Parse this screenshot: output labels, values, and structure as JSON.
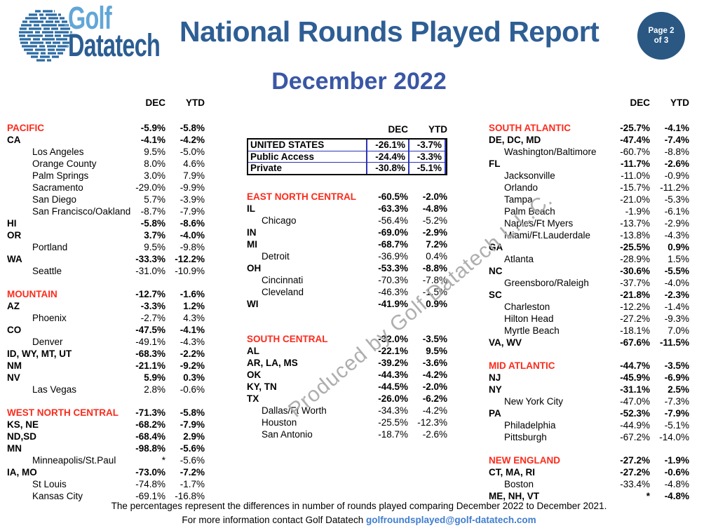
{
  "logo": {
    "line1": "Golf",
    "line2": "Datatech"
  },
  "header": {
    "title": "National Rounds Played Report",
    "page_badge": "Page 2 of 3"
  },
  "subtitle": "December 2022",
  "watermark": "Produced by Golf Datatech L.L.C.",
  "us_box": {
    "rows": [
      {
        "label": "UNITED STATES",
        "dec": "-26.1%",
        "ytd": "-3.7%"
      },
      {
        "label": "Public Access",
        "dec": "-24.4%",
        "ytd": "-3.3%"
      },
      {
        "label": "Private",
        "dec": "-30.8%",
        "ytd": "-5.1%"
      }
    ]
  },
  "columns": [
    {
      "id": "left",
      "headers": [
        "DEC",
        "YTD"
      ],
      "sections": [
        {
          "rows": [
            {
              "label": "PACIFIC",
              "dec": "-5.9%",
              "ytd": "-5.8%",
              "style": "section"
            },
            {
              "label": "CA",
              "dec": "-4.1%",
              "ytd": "-4.2%",
              "style": "state"
            },
            {
              "label": "Los Angeles",
              "dec": "9.5%",
              "ytd": "-5.0%",
              "style": "city"
            },
            {
              "label": "Orange County",
              "dec": "8.0%",
              "ytd": "4.6%",
              "style": "city"
            },
            {
              "label": "Palm Springs",
              "dec": "3.0%",
              "ytd": "7.9%",
              "style": "city"
            },
            {
              "label": "Sacramento",
              "dec": "-29.0%",
              "ytd": "-9.9%",
              "style": "city"
            },
            {
              "label": "San Diego",
              "dec": "5.7%",
              "ytd": "-3.9%",
              "style": "city"
            },
            {
              "label": "San Francisco/Oakland",
              "dec": "-8.7%",
              "ytd": "-7.9%",
              "style": "city"
            },
            {
              "label": "HI",
              "dec": "-5.8%",
              "ytd": "-8.6%",
              "style": "state"
            },
            {
              "label": "OR",
              "dec": "3.7%",
              "ytd": "-4.0%",
              "style": "state"
            },
            {
              "label": "Portland",
              "dec": "9.5%",
              "ytd": "-9.8%",
              "style": "city"
            },
            {
              "label": "WA",
              "dec": "-33.3%",
              "ytd": "-12.2%",
              "style": "state"
            },
            {
              "label": "Seattle",
              "dec": "-31.0%",
              "ytd": "-10.9%",
              "style": "city"
            }
          ]
        },
        {
          "rows": [
            {
              "label": "MOUNTAIN",
              "dec": "-12.7%",
              "ytd": "-1.6%",
              "style": "section"
            },
            {
              "label": "AZ",
              "dec": "-3.3%",
              "ytd": "1.2%",
              "style": "state"
            },
            {
              "label": "Phoenix",
              "dec": "-2.7%",
              "ytd": "4.3%",
              "style": "city"
            },
            {
              "label": "CO",
              "dec": "-47.5%",
              "ytd": "-4.1%",
              "style": "state"
            },
            {
              "label": "Denver",
              "dec": "-49.1%",
              "ytd": "-4.3%",
              "style": "city"
            },
            {
              "label": "ID, WY, MT, UT",
              "dec": "-68.3%",
              "ytd": "-2.2%",
              "style": "state"
            },
            {
              "label": "NM",
              "dec": "-21.1%",
              "ytd": "-9.2%",
              "style": "state"
            },
            {
              "label": "NV",
              "dec": "5.9%",
              "ytd": "0.3%",
              "style": "state"
            },
            {
              "label": "Las Vegas",
              "dec": "2.8%",
              "ytd": "-0.6%",
              "style": "city"
            }
          ]
        },
        {
          "rows": [
            {
              "label": "WEST NORTH CENTRAL",
              "dec": "-71.3%",
              "ytd": "-5.8%",
              "style": "section"
            },
            {
              "label": "KS, NE",
              "dec": "-68.2%",
              "ytd": "-7.9%",
              "style": "state"
            },
            {
              "label": "ND,SD",
              "dec": "-68.4%",
              "ytd": "2.9%",
              "style": "state"
            },
            {
              "label": "MN",
              "dec": "-98.8%",
              "ytd": "-5.6%",
              "style": "state"
            },
            {
              "label": "Minneapolis/St.Paul",
              "dec": "*",
              "ytd": "-5.6%",
              "style": "city"
            },
            {
              "label": "IA, MO",
              "dec": "-73.0%",
              "ytd": "-7.2%",
              "style": "state"
            },
            {
              "label": "St Louis",
              "dec": "-74.8%",
              "ytd": "-1.7%",
              "style": "city"
            },
            {
              "label": "Kansas City",
              "dec": "-69.1%",
              "ytd": "-16.8%",
              "style": "city"
            }
          ]
        }
      ]
    },
    {
      "id": "middle",
      "headers": [
        "DEC",
        "YTD"
      ],
      "has_us_box": true,
      "sections": [
        {
          "rows": [
            {
              "label": "EAST NORTH CENTRAL",
              "dec": "-60.5%",
              "ytd": "-2.0%",
              "style": "section"
            },
            {
              "label": "IL",
              "dec": "-63.3%",
              "ytd": "-4.8%",
              "style": "state"
            },
            {
              "label": "Chicago",
              "dec": "-56.4%",
              "ytd": "-5.2%",
              "style": "city"
            },
            {
              "label": "IN",
              "dec": "-69.0%",
              "ytd": "-2.9%",
              "style": "state"
            },
            {
              "label": "MI",
              "dec": "-68.7%",
              "ytd": "7.2%",
              "style": "state"
            },
            {
              "label": "Detroit",
              "dec": "-36.9%",
              "ytd": "0.4%",
              "style": "city"
            },
            {
              "label": "OH",
              "dec": "-53.3%",
              "ytd": "-8.8%",
              "style": "state"
            },
            {
              "label": "Cincinnati",
              "dec": "-70.3%",
              "ytd": "-7.8%",
              "style": "city"
            },
            {
              "label": "Cleveland",
              "dec": "-46.3%",
              "ytd": "-1.5%",
              "style": "city"
            },
            {
              "label": "WI",
              "dec": "-41.9%",
              "ytd": "0.9%",
              "style": "state"
            }
          ]
        },
        {
          "rows": [
            {
              "label": "SOUTH CENTRAL",
              "dec": "-32.0%",
              "ytd": "-3.5%",
              "style": "section"
            },
            {
              "label": "AL",
              "dec": "-22.1%",
              "ytd": "9.5%",
              "style": "state"
            },
            {
              "label": "AR, LA, MS",
              "dec": "-39.2%",
              "ytd": "-3.6%",
              "style": "state"
            },
            {
              "label": "OK",
              "dec": "-44.3%",
              "ytd": "-4.2%",
              "style": "state"
            },
            {
              "label": "KY, TN",
              "dec": "-44.5%",
              "ytd": "-2.0%",
              "style": "state"
            },
            {
              "label": "TX",
              "dec": "-26.0%",
              "ytd": "-6.2%",
              "style": "state"
            },
            {
              "label": "Dallas/Ft Worth",
              "dec": "-34.3%",
              "ytd": "-4.2%",
              "style": "city"
            },
            {
              "label": "Houston",
              "dec": "-25.5%",
              "ytd": "-12.3%",
              "style": "city"
            },
            {
              "label": "San Antonio",
              "dec": "-18.7%",
              "ytd": "-2.6%",
              "style": "city"
            }
          ]
        }
      ]
    },
    {
      "id": "right",
      "headers": [
        "DEC",
        "YTD"
      ],
      "sections": [
        {
          "rows": [
            {
              "label": "SOUTH ATLANTIC",
              "dec": "-25.7%",
              "ytd": "-4.1%",
              "style": "section"
            },
            {
              "label": "DE, DC, MD",
              "dec": "-47.4%",
              "ytd": "-7.4%",
              "style": "state"
            },
            {
              "label": "Washington/Baltimore",
              "dec": "-60.7%",
              "ytd": "-8.8%",
              "style": "city"
            },
            {
              "label": "FL",
              "dec": "-11.7%",
              "ytd": "-2.6%",
              "style": "state"
            },
            {
              "label": "Jacksonville",
              "dec": "-11.0%",
              "ytd": "-0.9%",
              "style": "city"
            },
            {
              "label": "Orlando",
              "dec": "-15.7%",
              "ytd": "-11.2%",
              "style": "city"
            },
            {
              "label": "Tampa",
              "dec": "-21.0%",
              "ytd": "-5.3%",
              "style": "city"
            },
            {
              "label": "Palm Beach",
              "dec": "-1.9%",
              "ytd": "-6.1%",
              "style": "city"
            },
            {
              "label": "Naples/Ft Myers",
              "dec": "-13.7%",
              "ytd": "-2.9%",
              "style": "city"
            },
            {
              "label": "Miami/Ft.Lauderdale",
              "dec": "-13.8%",
              "ytd": "-4.3%",
              "style": "city"
            },
            {
              "label": "GA",
              "dec": "-25.5%",
              "ytd": "0.9%",
              "style": "state"
            },
            {
              "label": "Atlanta",
              "dec": "-28.9%",
              "ytd": "1.5%",
              "style": "city"
            },
            {
              "label": "NC",
              "dec": "-30.6%",
              "ytd": "-5.5%",
              "style": "state"
            },
            {
              "label": "Greensboro/Raleigh",
              "dec": "-37.7%",
              "ytd": "-4.0%",
              "style": "city"
            },
            {
              "label": "SC",
              "dec": "-21.8%",
              "ytd": "-2.3%",
              "style": "state"
            },
            {
              "label": "Charleston",
              "dec": "-12.2%",
              "ytd": "-1.4%",
              "style": "city"
            },
            {
              "label": "Hilton Head",
              "dec": "-27.2%",
              "ytd": "-9.3%",
              "style": "city"
            },
            {
              "label": "Myrtle Beach",
              "dec": "-18.1%",
              "ytd": "7.0%",
              "style": "city"
            },
            {
              "label": "VA, WV",
              "dec": "-67.6%",
              "ytd": "-11.5%",
              "style": "state"
            }
          ]
        },
        {
          "rows": [
            {
              "label": "MID ATLANTIC",
              "dec": "-44.7%",
              "ytd": "-3.5%",
              "style": "section"
            },
            {
              "label": "NJ",
              "dec": "-45.9%",
              "ytd": "-6.9%",
              "style": "state"
            },
            {
              "label": "NY",
              "dec": "-31.1%",
              "ytd": "2.5%",
              "style": "state"
            },
            {
              "label": "New York City",
              "dec": "-47.0%",
              "ytd": "-7.3%",
              "style": "city"
            },
            {
              "label": "PA",
              "dec": "-52.3%",
              "ytd": "-7.9%",
              "style": "state"
            },
            {
              "label": "Philadelphia",
              "dec": "-44.9%",
              "ytd": "-5.1%",
              "style": "city"
            },
            {
              "label": "Pittsburgh",
              "dec": "-67.2%",
              "ytd": "-14.0%",
              "style": "city"
            }
          ]
        },
        {
          "rows": [
            {
              "label": "NEW ENGLAND",
              "dec": "-27.2%",
              "ytd": "-1.9%",
              "style": "section"
            },
            {
              "label": "CT, MA, RI",
              "dec": "-27.2%",
              "ytd": "-0.6%",
              "style": "state"
            },
            {
              "label": "Boston",
              "dec": "-33.4%",
              "ytd": "-4.8%",
              "style": "city"
            },
            {
              "label": "ME, NH, VT",
              "dec": "*",
              "ytd": "-4.8%",
              "style": "state"
            }
          ]
        }
      ]
    }
  ],
  "footer": {
    "line1": "The percentages represent the differences in number of rounds played comparing December 2022 to December 2021.",
    "line2_prefix": "For more information contact Golf Datatech ",
    "email": "golfroundsplayed@golf-datatech.com"
  },
  "colors": {
    "section_red": "#fb2b1c",
    "title_blue": "#2e5e94",
    "subtitle_blue": "#3a57a5",
    "logo_light_blue": "#61a6d8",
    "logo_dark_blue": "#2b5d92",
    "badge_blue": "#2a5883",
    "us_box_border_blue": "#2b35b5",
    "email_blue": "#3f7dd0",
    "watermark_gray": "#aeaeae"
  }
}
